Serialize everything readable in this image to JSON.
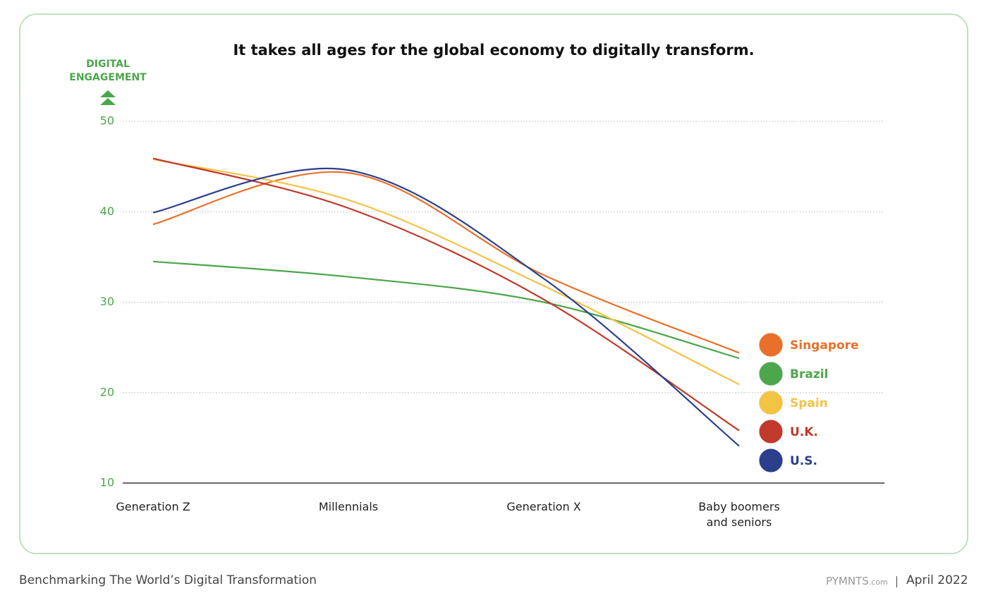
{
  "chart_data": {
    "type": "line",
    "title": "It takes all ages for the global economy to digitally transform.",
    "y_label": "DIGITAL ENGAGEMENT",
    "categories": [
      "Generation Z",
      "Millennials",
      "Generation X",
      "Baby boomers and seniors"
    ],
    "series": [
      {
        "name": "Singapore",
        "color": "#e8702a",
        "values": [
          38.6,
          44.3,
          33.0,
          24.4
        ]
      },
      {
        "name": "Brazil",
        "color": "#4ca64c",
        "values": [
          34.5,
          32.8,
          30.0,
          23.8
        ]
      },
      {
        "name": "Spain",
        "color": "#f3c343",
        "values": [
          45.8,
          41.3,
          31.8,
          20.9
        ]
      },
      {
        "name": "U.K.",
        "color": "#c0392b",
        "values": [
          45.9,
          40.4,
          30.3,
          15.8
        ]
      },
      {
        "name": "U.S.",
        "color": "#2b3f8c",
        "values": [
          39.9,
          44.6,
          32.6,
          14.1
        ]
      }
    ],
    "ylim": [
      10,
      50
    ],
    "yticks": [
      10,
      20,
      30,
      40,
      50
    ],
    "grid": true,
    "legend": "right"
  },
  "footer": {
    "source": "Benchmarking The World’s Digital Transformation",
    "brand": "PYMNTS",
    "brand_suffix": ".com",
    "date": "April 2022"
  }
}
